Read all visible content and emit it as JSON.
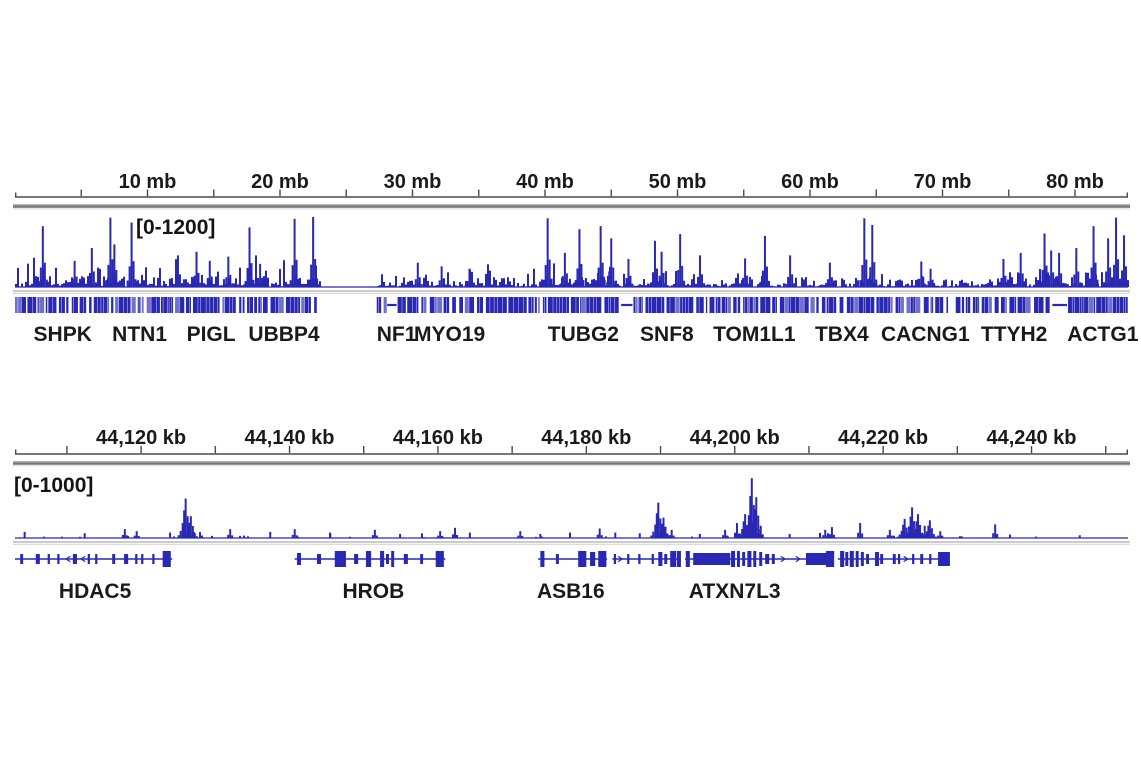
{
  "figure": {
    "background": "#ffffff",
    "colors": {
      "signal": "#2828b4",
      "gene": "#2828b4",
      "gene_light": "#7070cf",
      "axis": "#4a4a4a",
      "text": "#1a1a1a",
      "sep_dark": "#787878",
      "sep_mid": "#b5b5b5",
      "sep_light": "#d8d8d8",
      "baseline_gray": "#9a9a9a",
      "baseline_gray2": "#cfcfcf"
    }
  },
  "chart_data": [
    {
      "type": "area",
      "name": "chromosome-overview-chipseq-track",
      "range_label": "[0-1200]",
      "ylim": [
        0,
        1200
      ],
      "x_axis": {
        "unit": "mb",
        "range": [
          0,
          84
        ],
        "tick_step": 5,
        "label_values": [
          10,
          20,
          30,
          40,
          50,
          60,
          70,
          80
        ],
        "labels": [
          "10 mb",
          "20 mb",
          "30 mb",
          "40 mb",
          "50 mb",
          "60 mb",
          "70 mb",
          "80 mb"
        ]
      },
      "signal_gap": [
        23.0,
        27.0
      ],
      "noise_envelope": [
        [
          0,
          23,
          1.0
        ],
        [
          27.2,
          34,
          0.6
        ],
        [
          34,
          47,
          0.95
        ],
        [
          47,
          53,
          0.85
        ],
        [
          53,
          59,
          0.75
        ],
        [
          59,
          66,
          0.7
        ],
        [
          66,
          74,
          0.4
        ],
        [
          74,
          84,
          0.95
        ]
      ],
      "peaks": [
        [
          2.1,
          1000
        ],
        [
          4.5,
          430
        ],
        [
          5.8,
          640
        ],
        [
          7.2,
          1140
        ],
        [
          7.5,
          700
        ],
        [
          8.8,
          1060
        ],
        [
          12.3,
          520
        ],
        [
          13.7,
          580
        ],
        [
          14.7,
          430
        ],
        [
          16.1,
          500
        ],
        [
          17.7,
          980
        ],
        [
          18.5,
          380
        ],
        [
          21.1,
          1120
        ],
        [
          22.5,
          1150
        ],
        [
          30.4,
          400
        ],
        [
          32.2,
          340
        ],
        [
          34.3,
          300
        ],
        [
          40.2,
          1130
        ],
        [
          41.5,
          560
        ],
        [
          42.6,
          950
        ],
        [
          44.2,
          1000
        ],
        [
          45.0,
          800
        ],
        [
          46.3,
          460
        ],
        [
          48.3,
          760
        ],
        [
          48.8,
          580
        ],
        [
          50.2,
          870
        ],
        [
          51.7,
          520
        ],
        [
          55.1,
          470
        ],
        [
          56.6,
          840
        ],
        [
          58.5,
          520
        ],
        [
          61.5,
          400
        ],
        [
          64.1,
          1130
        ],
        [
          64.7,
          1020
        ],
        [
          68.4,
          420
        ],
        [
          69.1,
          300
        ],
        [
          74.6,
          460
        ],
        [
          75.9,
          560
        ],
        [
          77.7,
          880
        ],
        [
          78.2,
          600
        ],
        [
          78.8,
          560
        ],
        [
          80.1,
          640
        ],
        [
          81.4,
          1000
        ],
        [
          82.5,
          800
        ],
        [
          83.1,
          1140
        ],
        [
          83.7,
          850
        ]
      ],
      "gene_band": {
        "gaps": [
          [
            22.8,
            27.3
          ],
          [
            69.9,
            70.3
          ],
          [
            70.6,
            71.0
          ]
        ],
        "thin_segments": [
          [
            28.1,
            28.8
          ],
          [
            45.6,
            46.6
          ],
          [
            78.3,
            79.4
          ]
        ]
      },
      "gene_labels": [
        {
          "name": "SHPK",
          "mb": 3.6
        },
        {
          "name": "NTN1",
          "mb": 9.4
        },
        {
          "name": "PIGL",
          "mb": 14.8
        },
        {
          "name": "UBBP4",
          "mb": 20.3
        },
        {
          "name": "NF1",
          "mb": 28.8
        },
        {
          "name": "MYO19",
          "mb": 32.8
        },
        {
          "name": "TUBG2",
          "mb": 42.9
        },
        {
          "name": "SNF8",
          "mb": 49.2
        },
        {
          "name": "TOM1L1",
          "mb": 55.8
        },
        {
          "name": "TBX4",
          "mb": 62.4
        },
        {
          "name": "CACNG1",
          "mb": 68.7
        },
        {
          "name": "TTYH2",
          "mb": 75.4
        },
        {
          "name": "ACTG1",
          "mb": 82.1
        }
      ]
    },
    {
      "type": "area",
      "name": "locus-detail-chipseq-track",
      "range_label": "[0-1000]",
      "ylim": [
        0,
        1000
      ],
      "x_axis": {
        "unit": "kb",
        "range": [
          44103,
          44253
        ],
        "tick_step": 10,
        "label_values": [
          44120,
          44140,
          44160,
          44180,
          44200,
          44220,
          44240
        ],
        "labels": [
          "44,120 kb",
          "44,140 kb",
          "44,160 kb",
          "44,180 kb",
          "44,200 kb",
          "44,220 kb",
          "44,240 kb"
        ]
      },
      "peaks": [
        [
          44104.3,
          90
        ],
        [
          44112.4,
          70
        ],
        [
          44117.8,
          130
        ],
        [
          44119.4,
          100
        ],
        [
          44123.9,
          80
        ],
        [
          44126.0,
          580
        ],
        [
          44126.7,
          320
        ],
        [
          44132.0,
          130
        ],
        [
          44137.4,
          90
        ],
        [
          44140.7,
          130
        ],
        [
          44145.5,
          60
        ],
        [
          44151.5,
          120
        ],
        [
          44154.9,
          60
        ],
        [
          44160.3,
          100
        ],
        [
          44162.3,
          150
        ],
        [
          44164.3,
          80
        ],
        [
          44171.1,
          100
        ],
        [
          44173.8,
          60
        ],
        [
          44177.8,
          80
        ],
        [
          44181.8,
          140
        ],
        [
          44183.9,
          80
        ],
        [
          44187.2,
          70
        ],
        [
          44189.7,
          520
        ],
        [
          44190.4,
          300
        ],
        [
          44191.5,
          120
        ],
        [
          44195.3,
          60
        ],
        [
          44198.7,
          120
        ],
        [
          44200.3,
          220
        ],
        [
          44201.4,
          350
        ],
        [
          44202.3,
          880
        ],
        [
          44202.9,
          600
        ],
        [
          44203.5,
          180
        ],
        [
          44207.4,
          60
        ],
        [
          44212.2,
          120
        ],
        [
          44213.1,
          160
        ],
        [
          44216.9,
          220
        ],
        [
          44220.9,
          120
        ],
        [
          44222.9,
          280
        ],
        [
          44223.9,
          450
        ],
        [
          44224.7,
          350
        ],
        [
          44225.6,
          180
        ],
        [
          44226.3,
          260
        ],
        [
          44227.7,
          100
        ],
        [
          44235.1,
          200
        ],
        [
          44237.1,
          50
        ],
        [
          44246.5,
          40
        ]
      ],
      "genes": [
        {
          "name": "HDAC5",
          "strand": "-",
          "span": [
            44103.0,
            44124.2
          ],
          "label_kb": 44113.8,
          "exons": [
            [
              44103.7,
              0.4,
              10
            ],
            [
              44105.8,
              0.55,
              10
            ],
            [
              44107.4,
              0.3,
              10
            ],
            [
              44108.7,
              0.3,
              10
            ],
            [
              44110.8,
              0.55,
              10
            ],
            [
              44112.8,
              0.3,
              10
            ],
            [
              44113.8,
              0.3,
              10
            ],
            [
              44116.1,
              0.4,
              10
            ],
            [
              44117.7,
              0.55,
              10
            ],
            [
              44119.2,
              0.3,
              10
            ],
            [
              44120.0,
              0.3,
              10
            ],
            [
              44121.5,
              0.3,
              10
            ],
            [
              44122.9,
              1.1,
              16
            ]
          ]
        },
        {
          "name": "HROB",
          "strand": "+",
          "span": [
            44140.7,
            44161.0
          ],
          "label_kb": 44151.3,
          "exons": [
            [
              44141.0,
              0.55,
              12
            ],
            [
              44143.7,
              0.55,
              10
            ],
            [
              44146.1,
              1.5,
              16
            ],
            [
              44148.7,
              0.55,
              10
            ],
            [
              44150.3,
              0.7,
              16
            ],
            [
              44152.2,
              0.55,
              16
            ],
            [
              44153.0,
              0.4,
              10
            ],
            [
              44153.7,
              0.4,
              16
            ],
            [
              44155.4,
              0.55,
              10
            ],
            [
              44157.6,
              0.4,
              10
            ],
            [
              44159.7,
              1.1,
              16
            ]
          ]
        },
        {
          "name": "ASB16",
          "strand": "+",
          "span": [
            44173.5,
            44182.8
          ],
          "label_kb": 44177.9,
          "exons": [
            [
              44173.8,
              0.55,
              16
            ],
            [
              44175.9,
              0.4,
              10
            ],
            [
              44178.9,
              1.1,
              16
            ],
            [
              44180.5,
              0.7,
              14
            ],
            [
              44181.6,
              1.1,
              16
            ]
          ]
        },
        {
          "name": "",
          "strand": "+",
          "span": [
            44183.5,
            44192.6
          ],
          "label_kb": null,
          "exons": [
            [
              44183.7,
              0.3,
              10
            ],
            [
              44185.5,
              0.3,
              10
            ],
            [
              44187.0,
              0.3,
              10
            ],
            [
              44188.8,
              0.3,
              10
            ],
            [
              44189.7,
              0.55,
              14
            ],
            [
              44190.5,
              0.4,
              10
            ],
            [
              44191.3,
              0.8,
              16
            ],
            [
              44192.2,
              0.55,
              16
            ]
          ]
        },
        {
          "name": "ATXN7L3",
          "strand": "+",
          "span": [
            44193.3,
            44212.8
          ],
          "label_kb": 44200.0,
          "exons": [
            [
              44193.4,
              0.55,
              16
            ],
            [
              44194.4,
              5.0,
              12
            ],
            [
              44199.5,
              0.55,
              16
            ],
            [
              44200.3,
              0.4,
              16
            ],
            [
              44201.0,
              0.4,
              14
            ],
            [
              44201.7,
              0.55,
              16
            ],
            [
              44202.5,
              0.4,
              16
            ],
            [
              44203.3,
              0.4,
              14
            ],
            [
              44204.1,
              0.55,
              10
            ],
            [
              44205.0,
              0.4,
              10
            ],
            [
              44209.6,
              3.2,
              12
            ],
            [
              44212.3,
              1.1,
              16
            ]
          ]
        },
        {
          "name": "",
          "strand": "+",
          "span": [
            44213.9,
            44229.0
          ],
          "label_kb": null,
          "exons": [
            [
              44214.2,
              0.55,
              16
            ],
            [
              44214.9,
              0.4,
              14
            ],
            [
              44215.5,
              0.55,
              16
            ],
            [
              44216.3,
              0.4,
              16
            ],
            [
              44217.0,
              0.4,
              14
            ],
            [
              44217.7,
              0.4,
              10
            ],
            [
              44218.9,
              0.55,
              14
            ],
            [
              44219.6,
              0.4,
              10
            ],
            [
              44221.3,
              0.4,
              10
            ],
            [
              44222.0,
              0.3,
              10
            ],
            [
              44223.9,
              0.3,
              10
            ],
            [
              44225.0,
              0.4,
              10
            ],
            [
              44226.2,
              0.3,
              10
            ],
            [
              44227.4,
              1.6,
              14
            ]
          ]
        }
      ]
    }
  ]
}
